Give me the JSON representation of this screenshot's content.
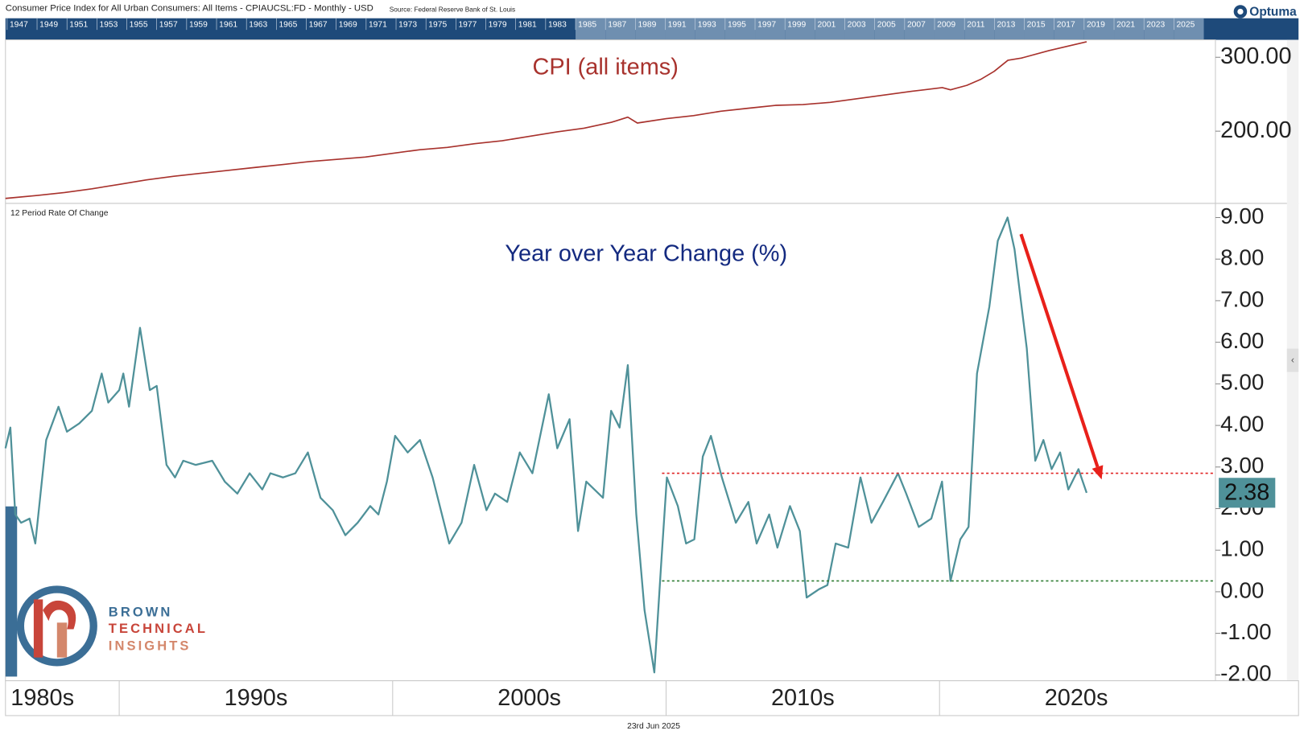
{
  "header": {
    "title": "Consumer Price Index for All Urban Consumers: All Items - CPIAUCSL:FD - Monthly - USD",
    "source": "Source: Federal Reserve Bank of St. Louis"
  },
  "brand": "Optuma",
  "timeline": [
    1947,
    1949,
    1951,
    1953,
    1955,
    1957,
    1959,
    1961,
    1963,
    1965,
    1967,
    1969,
    1971,
    1973,
    1975,
    1977,
    1979,
    1981,
    1983,
    1985,
    1987,
    1989,
    1991,
    1993,
    1995,
    1997,
    1999,
    2001,
    2003,
    2005,
    2007,
    2009,
    2011,
    2013,
    2015,
    2017,
    2019,
    2021,
    2023,
    2025
  ],
  "decades": [
    {
      "value": 1980,
      "label": "1980s"
    },
    {
      "value": 1990,
      "label": "1990s"
    },
    {
      "value": 2000,
      "label": "2000s"
    },
    {
      "value": 2010,
      "label": "2010s"
    },
    {
      "value": 2020,
      "label": "2020s"
    }
  ],
  "footer_date": "23rd Jun 2025",
  "logo": [
    "BROWN",
    "TECHNICAL",
    "INSIGHTS"
  ],
  "chart_data": [
    {
      "type": "line",
      "title": "CPI (all items)",
      "color": "#a8322d",
      "xlim": [
        1985.84,
        2030.09
      ],
      "ylim": [
        104.5,
        323.6
      ],
      "yticks": [
        {
          "value": 300,
          "label": "300.00"
        },
        {
          "value": 200,
          "label": "200.00"
        }
      ],
      "x": [
        1985.84,
        1987,
        1988,
        1989,
        1990,
        1991,
        1992,
        1993,
        1994,
        1995,
        1996,
        1997,
        1998,
        1999,
        2000,
        2001,
        2002,
        2003,
        2004,
        2005,
        2006,
        2007,
        2008,
        2008.6,
        2008.95,
        2010,
        2011,
        2012,
        2013,
        2014,
        2015,
        2016,
        2017,
        2018,
        2019,
        2020.1,
        2020.4,
        2021,
        2021.5,
        2022,
        2022.5,
        2023,
        2024,
        2025.38
      ],
      "values": [
        109,
        113,
        117,
        122,
        128,
        134,
        139,
        143,
        147,
        151,
        155,
        159,
        162,
        165,
        170,
        175,
        178,
        183,
        187,
        193,
        199,
        204,
        212,
        219,
        211,
        217,
        221,
        227,
        231,
        235,
        236,
        239,
        244,
        249,
        254,
        259,
        256,
        262,
        270,
        281,
        296,
        299,
        309,
        321
      ]
    },
    {
      "type": "line",
      "title": "Year over Year Change (%)",
      "subtitle": "12 Period Rate Of Change",
      "color": "#4f9199",
      "xlim": [
        1985.84,
        2030.09
      ],
      "ylim": [
        -2.1,
        9.24
      ],
      "yticks": [
        {
          "value": 9,
          "label": "9.00"
        },
        {
          "value": 8,
          "label": "8.00"
        },
        {
          "value": 7,
          "label": "7.00"
        },
        {
          "value": 6,
          "label": "6.00"
        },
        {
          "value": 5,
          "label": "5.00"
        },
        {
          "value": 4,
          "label": "4.00"
        },
        {
          "value": 3,
          "label": "3.00"
        },
        {
          "value": 2,
          "label": "2.00"
        },
        {
          "value": 1,
          "label": "1.00"
        },
        {
          "value": 0,
          "label": "0.00"
        },
        {
          "value": -1,
          "label": "-1.00"
        },
        {
          "value": -2,
          "label": "-2.00"
        }
      ],
      "x": [
        1985.84,
        1986.02,
        1986.2,
        1986.41,
        1986.72,
        1986.93,
        1987.33,
        1987.78,
        1988.09,
        1988.54,
        1989.0,
        1989.36,
        1989.6,
        1990.0,
        1990.15,
        1990.36,
        1990.76,
        1991.12,
        1991.37,
        1991.73,
        1992.04,
        1992.34,
        1992.8,
        1993.4,
        1993.86,
        1994.32,
        1994.77,
        1995.23,
        1995.53,
        1995.99,
        1996.44,
        1996.9,
        1997.36,
        1997.81,
        1998.27,
        1998.72,
        1999.18,
        1999.48,
        1999.79,
        2000.09,
        2000.55,
        2001.0,
        2001.46,
        2002.07,
        2002.52,
        2002.98,
        2003.43,
        2003.74,
        2004.19,
        2004.65,
        2005.11,
        2005.71,
        2006.02,
        2006.47,
        2006.78,
        2007.08,
        2007.69,
        2007.99,
        2008.3,
        2008.6,
        2008.91,
        2009.21,
        2009.57,
        2009.82,
        2010.03,
        2010.43,
        2010.73,
        2011.03,
        2011.34,
        2011.64,
        2012.04,
        2012.55,
        2013.01,
        2013.31,
        2013.77,
        2014.07,
        2014.53,
        2014.89,
        2015.14,
        2015.59,
        2015.9,
        2016.2,
        2016.66,
        2017.11,
        2017.51,
        2017.93,
        2018.48,
        2018.78,
        2019.24,
        2019.7,
        2020.09,
        2020.4,
        2020.76,
        2021.06,
        2021.37,
        2021.82,
        2022.13,
        2022.49,
        2022.74,
        2023.19,
        2023.5,
        2023.8,
        2024.1,
        2024.41,
        2024.71,
        2025.08,
        2025.38
      ],
      "values": [
        3.45,
        3.95,
        1.86,
        1.66,
        1.76,
        1.16,
        3.65,
        4.45,
        3.85,
        4.05,
        4.35,
        5.25,
        4.55,
        4.85,
        5.25,
        4.45,
        6.35,
        4.85,
        4.95,
        3.05,
        2.75,
        3.15,
        3.05,
        3.15,
        2.65,
        2.36,
        2.85,
        2.46,
        2.85,
        2.75,
        2.85,
        3.35,
        2.26,
        1.96,
        1.36,
        1.66,
        2.06,
        1.86,
        2.65,
        3.75,
        3.35,
        3.65,
        2.75,
        1.16,
        1.66,
        3.05,
        1.96,
        2.36,
        2.16,
        3.35,
        2.85,
        4.75,
        3.45,
        4.15,
        1.46,
        2.65,
        2.26,
        4.35,
        3.95,
        5.45,
        1.86,
        -0.44,
        -1.94,
        0.66,
        2.75,
        2.06,
        1.16,
        1.26,
        3.25,
        3.75,
        2.75,
        1.66,
        2.16,
        1.16,
        1.86,
        1.06,
        2.06,
        1.46,
        -0.14,
        0.06,
        0.16,
        1.16,
        1.06,
        2.75,
        1.66,
        2.16,
        2.85,
        2.36,
        1.56,
        1.76,
        2.65,
        0.26,
        1.26,
        1.56,
        5.25,
        6.85,
        8.44,
        9.0,
        8.24,
        5.85,
        3.15,
        3.65,
        2.95,
        3.35,
        2.46,
        2.95,
        2.38
      ],
      "reference_lines": [
        {
          "value": 2.85,
          "from": 2009.85,
          "color": "#e02424"
        },
        {
          "value": 0.26,
          "from": 2009.85,
          "color": "#2e7d32"
        }
      ],
      "arrow": {
        "x": [
          2022.98,
          2025.93
        ],
        "y": [
          8.6,
          2.7
        ],
        "color": "#e8201a"
      }
    }
  ]
}
